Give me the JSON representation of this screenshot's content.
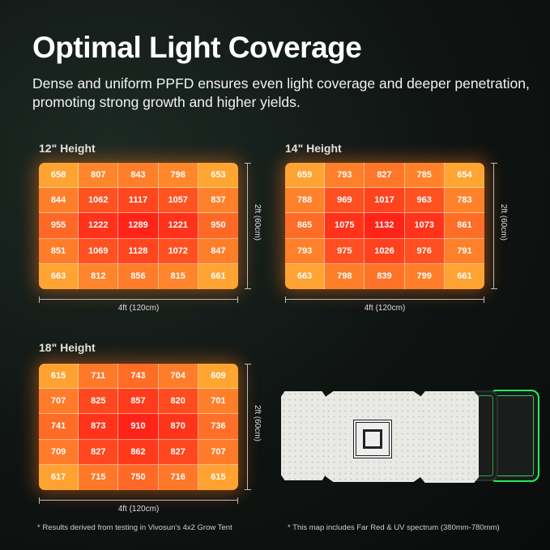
{
  "header": {
    "title": "Optimal Light Coverage",
    "subtitle": "Dense and uniform PPFD ensures even light coverage and deeper penetration, promoting strong growth and higher yields."
  },
  "dimensions": {
    "width": "4ft (120cm)",
    "depth": "2ft (60cm)"
  },
  "notes": {
    "left": "* Results derived from testing in Vivosun's 4x2 Grow Tent",
    "right": "* This map includes Far Red & UV spectrum (380mm-780mm)"
  },
  "colors": {
    "low": "#ffa532",
    "high": "#ff2418"
  },
  "chart_data": [
    {
      "type": "heatmap",
      "title": "12\" Height",
      "values": [
        [
          658,
          807,
          843,
          798,
          653
        ],
        [
          844,
          1062,
          1117,
          1057,
          837
        ],
        [
          955,
          1222,
          1289,
          1221,
          950
        ],
        [
          851,
          1069,
          1128,
          1072,
          847
        ],
        [
          663,
          812,
          856,
          815,
          661
        ]
      ]
    },
    {
      "type": "heatmap",
      "title": "14\" Height",
      "values": [
        [
          659,
          793,
          827,
          785,
          654
        ],
        [
          788,
          969,
          1017,
          963,
          783
        ],
        [
          865,
          1075,
          1132,
          1073,
          861
        ],
        [
          793,
          975,
          1026,
          976,
          791
        ],
        [
          663,
          798,
          839,
          799,
          661
        ]
      ]
    },
    {
      "type": "heatmap",
      "title": "18\" Height",
      "values": [
        [
          615,
          711,
          743,
          704,
          609
        ],
        [
          707,
          825,
          857,
          820,
          701
        ],
        [
          741,
          873,
          910,
          870,
          736
        ],
        [
          709,
          827,
          862,
          827,
          707
        ],
        [
          617,
          715,
          750,
          716,
          615
        ]
      ]
    }
  ]
}
